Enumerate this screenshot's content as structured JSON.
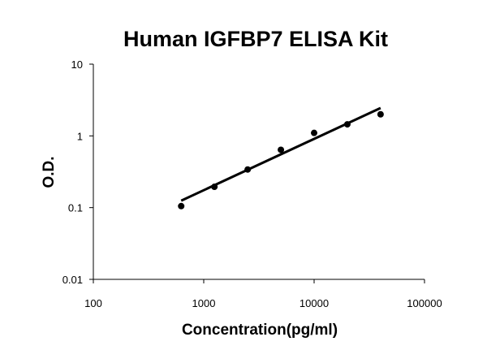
{
  "chart_data": {
    "type": "scatter",
    "title": "Human IGFBP7 ELISA Kit",
    "xlabel": "Concentration(pg/ml)",
    "ylabel": "O.D.",
    "xscale": "log",
    "yscale": "log",
    "xlim": [
      100,
      100000
    ],
    "ylim": [
      0.01,
      10
    ],
    "x_ticks": [
      100,
      1000,
      10000,
      100000
    ],
    "x_tick_labels": [
      "100",
      "1000",
      "10000",
      "100000"
    ],
    "y_ticks": [
      0.01,
      0.1,
      1,
      10
    ],
    "y_tick_labels": [
      "0.01",
      "0.1",
      "1",
      "10"
    ],
    "grid": false,
    "legend": "none",
    "series": [
      {
        "points": [
          {
            "x": 625,
            "y": 0.105
          },
          {
            "x": 1250,
            "y": 0.195
          },
          {
            "x": 2500,
            "y": 0.34
          },
          {
            "x": 5000,
            "y": 0.64
          },
          {
            "x": 10000,
            "y": 1.1
          },
          {
            "x": 20000,
            "y": 1.45
          },
          {
            "x": 40000,
            "y": 2.0
          }
        ]
      }
    ],
    "trendline": {
      "x": [
        625,
        40000
      ],
      "y": [
        0.125,
        2.45
      ]
    }
  }
}
